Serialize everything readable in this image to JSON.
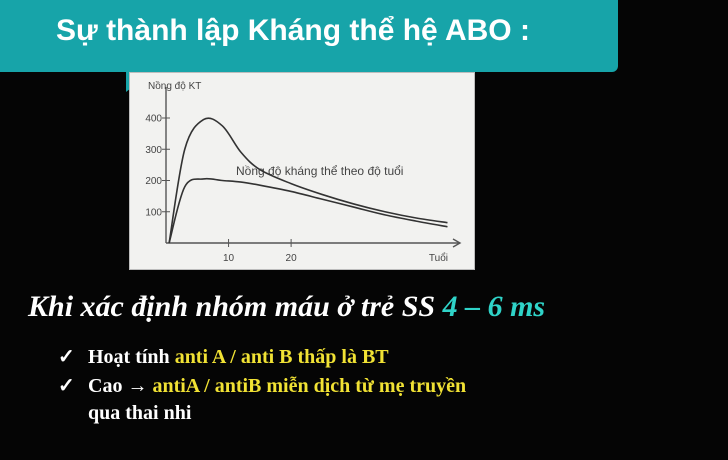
{
  "slide": {
    "title": "Sự thành lập Kháng thể hệ ABO :",
    "subtitle_main": "Khi xác định nhóm máu ở trẻ SS ",
    "subtitle_highlight": "4 – 6 ms",
    "bullets": [
      {
        "check": "✓",
        "text_plain": "Hoạt tính ",
        "text_highlight": "anti A / anti B thấp là BT"
      },
      {
        "check": "✓",
        "text_plain": "Cao → ",
        "text_highlight": "antiA / antiB",
        "text_after": " miễn dịch từ mẹ truyền",
        "continuation": "qua thai nhi"
      }
    ]
  },
  "colors": {
    "title_bar": "#17a4a9",
    "highlight_cyan": "#2fd3c8",
    "highlight_yellow": "#f1e234",
    "background": "#050505"
  },
  "chart_data": {
    "type": "line",
    "ylabel": "Nồng độ KT",
    "xlabel": "Tuổi",
    "annotation": "Nồng độ kháng thể theo độ tuổi",
    "x_ticks": [
      10,
      20
    ],
    "y_ticks": [
      100,
      200,
      300,
      400
    ],
    "xlim": [
      0,
      47
    ],
    "ylim": [
      0,
      480
    ],
    "series": [
      {
        "x": [
          0.5,
          3,
          6,
          9,
          12,
          15,
          20,
          25,
          30,
          35,
          40,
          45
        ],
        "y": [
          0,
          300,
          395,
          375,
          290,
          235,
          190,
          155,
          125,
          100,
          80,
          65
        ]
      },
      {
        "x": [
          0.5,
          3,
          6,
          9,
          12,
          15,
          20,
          25,
          30,
          35,
          40,
          45
        ],
        "y": [
          0,
          180,
          205,
          200,
          195,
          185,
          165,
          140,
          115,
          90,
          70,
          52
        ]
      }
    ]
  }
}
